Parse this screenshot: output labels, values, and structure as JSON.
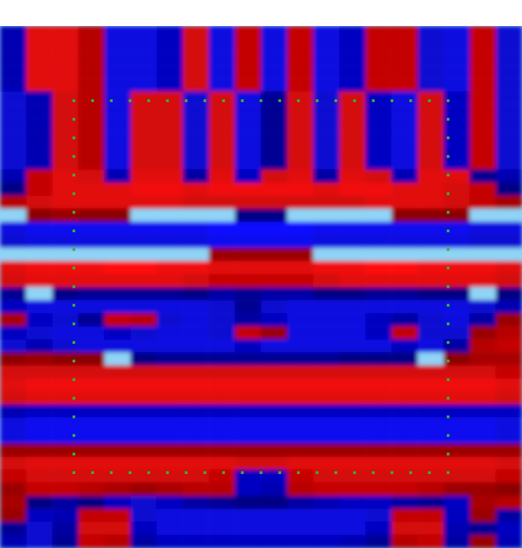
{
  "chart_data": {
    "type": "heatmap",
    "cells": [
      [
        -0.5,
        0.8,
        0.8,
        0.5,
        -0.8,
        -0.8,
        -0.6,
        0.7,
        -0.8,
        0.6,
        -0.8,
        0.6,
        -0.8,
        -0.6,
        0.6,
        0.6,
        -0.7,
        -0.8,
        0.6,
        -0.7
      ],
      [
        -0.5,
        0.8,
        0.8,
        0.5,
        -0.8,
        -0.8,
        -0.6,
        0.7,
        -0.8,
        0.6,
        -0.8,
        0.6,
        -0.8,
        -0.6,
        0.6,
        0.6,
        -0.7,
        -0.8,
        0.6,
        -0.7
      ],
      [
        -0.5,
        0.8,
        0.8,
        0.5,
        -0.8,
        -0.8,
        -0.6,
        0.7,
        -0.8,
        0.6,
        -0.8,
        0.6,
        -0.8,
        -0.6,
        0.6,
        0.6,
        -0.7,
        -0.8,
        0.6,
        -0.7
      ],
      [
        -0.5,
        0.8,
        0.8,
        0.5,
        -0.8,
        -0.8,
        -0.6,
        0.7,
        -0.8,
        0.6,
        -0.8,
        0.6,
        -0.8,
        -0.6,
        0.6,
        0.6,
        -0.7,
        -0.8,
        0.6,
        -0.7
      ],
      [
        -0.5,
        0.8,
        0.8,
        0.5,
        -0.8,
        -0.8,
        -0.6,
        0.7,
        -0.8,
        0.6,
        -0.8,
        0.6,
        -0.8,
        -0.6,
        0.6,
        0.6,
        -0.7,
        -0.8,
        0.6,
        -0.7
      ],
      [
        -0.7,
        -0.5,
        0.7,
        0.5,
        -0.8,
        0.7,
        0.7,
        -0.7,
        0.7,
        -0.8,
        -0.3,
        0.7,
        -0.7,
        0.7,
        -0.6,
        -0.8,
        0.7,
        -0.6,
        0.6,
        -0.7
      ],
      [
        -0.7,
        -0.5,
        0.7,
        0.5,
        -0.8,
        0.7,
        0.7,
        -0.7,
        0.7,
        -0.8,
        -0.3,
        0.7,
        -0.7,
        0.7,
        -0.6,
        -0.8,
        0.7,
        -0.6,
        0.6,
        -0.7
      ],
      [
        -0.7,
        -0.5,
        0.7,
        0.5,
        -0.8,
        0.7,
        0.7,
        -0.7,
        0.7,
        -0.8,
        -0.3,
        0.7,
        -0.7,
        0.7,
        -0.6,
        -0.8,
        0.7,
        -0.6,
        0.6,
        -0.7
      ],
      [
        -0.7,
        -0.5,
        0.7,
        0.5,
        -0.8,
        0.7,
        0.7,
        -0.7,
        0.7,
        -0.8,
        -0.3,
        0.7,
        -0.7,
        0.7,
        -0.6,
        -0.8,
        0.7,
        -0.6,
        0.6,
        -0.7
      ],
      [
        -0.7,
        -0.5,
        0.7,
        0.5,
        -0.8,
        0.7,
        0.7,
        -0.7,
        0.7,
        -0.8,
        -0.3,
        0.7,
        -0.7,
        0.7,
        -0.6,
        -0.8,
        0.7,
        -0.6,
        0.6,
        -0.7
      ],
      [
        -0.7,
        -0.5,
        0.7,
        0.5,
        -0.8,
        0.7,
        0.7,
        -0.7,
        0.7,
        -0.8,
        -0.3,
        0.7,
        -0.7,
        0.7,
        -0.6,
        -0.8,
        0.7,
        -0.6,
        0.6,
        -0.7
      ],
      [
        -0.5,
        0.6,
        0.8,
        0.7,
        -0.5,
        0.8,
        0.8,
        -0.4,
        0.8,
        -0.6,
        0.7,
        0.8,
        -0.4,
        0.8,
        0.7,
        -0.5,
        0.8,
        0.8,
        -0.3,
        -0.5
      ],
      [
        -0.2,
        0.6,
        0.8,
        0.8,
        0.8,
        0.9,
        0.9,
        0.8,
        0.9,
        0.9,
        0.9,
        0.9,
        0.8,
        0.9,
        0.9,
        0.8,
        0.8,
        0.7,
        0.6,
        -0.2
      ],
      [
        0.5,
        0.7,
        0.8,
        0.8,
        0.8,
        0.8,
        0.8,
        0.7,
        0.7,
        0.7,
        0.7,
        0.7,
        0.7,
        0.7,
        0.8,
        0.8,
        0.8,
        0.7,
        0.6,
        0.4
      ],
      [
        0.1,
        0.2,
        0.3,
        0.2,
        0.2,
        0.1,
        0.1,
        0,
        -0.1,
        -0.2,
        -0.2,
        -0.1,
        0,
        0.1,
        0.1,
        0.2,
        0.2,
        0.2,
        0.1,
        0
      ],
      [
        -0.8,
        -0.9,
        -0.9,
        -0.9,
        -0.9,
        -0.9,
        -0.9,
        -0.9,
        -1,
        -1,
        -1,
        -1,
        -0.9,
        -0.9,
        -0.9,
        -0.9,
        -0.9,
        -0.9,
        -0.8,
        -0.8
      ],
      [
        -0.7,
        -0.8,
        -0.8,
        -0.8,
        -0.8,
        -0.8,
        -0.8,
        -0.8,
        -0.9,
        -0.9,
        -0.9,
        -0.9,
        -0.8,
        -0.8,
        -0.8,
        -0.8,
        -0.8,
        -0.8,
        -0.7,
        -0.7
      ],
      [
        0,
        0,
        -0.1,
        -0.1,
        -0.1,
        -0.1,
        -0.1,
        0,
        0.3,
        0.3,
        0.3,
        0.3,
        0,
        -0.1,
        -0.1,
        -0.1,
        -0.1,
        -0.1,
        0,
        0
      ],
      [
        0.8,
        0.9,
        0.9,
        0.9,
        1,
        1,
        0.9,
        0.9,
        0.8,
        0.8,
        0.8,
        0.8,
        0.9,
        0.9,
        1,
        1,
        0.9,
        0.9,
        0.9,
        0.8
      ],
      [
        0.7,
        0.8,
        0.8,
        0.8,
        0.8,
        0.8,
        0.8,
        0.7,
        0.6,
        0.6,
        0.6,
        0.6,
        0.7,
        0.8,
        0.8,
        0.8,
        0.8,
        0.8,
        0.8,
        0.7
      ],
      [
        -0.3,
        -0.1,
        -0.2,
        -0.3,
        -0.3,
        -0.3,
        -0.3,
        -0.2,
        -0.4,
        -0.3,
        -0.4,
        -0.4,
        -0.2,
        -0.2,
        -0.3,
        -0.3,
        -0.2,
        -0.2,
        -0.1,
        -0.2
      ],
      [
        -0.6,
        -0.8,
        -0.8,
        -0.8,
        -0.8,
        -0.8,
        -0.8,
        -0.8,
        -0.7,
        -0.3,
        -0.7,
        -0.8,
        -0.8,
        -0.8,
        -0.8,
        -0.8,
        -0.8,
        -0.8,
        -0.7,
        -0.5
      ],
      [
        0.4,
        -0.6,
        -0.7,
        -0.3,
        0.6,
        0.5,
        -0.7,
        -0.8,
        -0.7,
        -0.4,
        -0.6,
        -0.8,
        -0.8,
        -0.8,
        -0.6,
        -0.4,
        -0.7,
        -0.8,
        -0.4,
        0.3
      ],
      [
        -0.6,
        -0.7,
        -0.8,
        -0.8,
        -0.6,
        -0.7,
        -0.8,
        -0.8,
        -0.7,
        0.6,
        0.3,
        -0.8,
        -0.8,
        -0.8,
        -0.6,
        0.6,
        -0.7,
        -0.7,
        0.3,
        0.5
      ],
      [
        -0.7,
        -0.5,
        -0.7,
        -0.8,
        -0.8,
        -0.8,
        -0.8,
        -0.8,
        -0.8,
        -0.6,
        -0.8,
        -0.8,
        -0.8,
        -0.8,
        -0.8,
        -0.6,
        -0.8,
        -0.4,
        0.5,
        0.6
      ],
      [
        0.2,
        0.3,
        0.2,
        0.2,
        0,
        -0.2,
        -0.3,
        -0.3,
        -0.3,
        -0.3,
        -0.3,
        -0.3,
        -0.3,
        -0.2,
        -0.2,
        -0.2,
        -0.1,
        0.2,
        0.4,
        0.4
      ],
      [
        0.7,
        0.7,
        0.7,
        0.7,
        0.7,
        0.7,
        0.7,
        0.7,
        0.7,
        0.7,
        0.7,
        0.7,
        0.7,
        0.7,
        0.7,
        0.7,
        0.7,
        0.7,
        0.7,
        0.6
      ],
      [
        0.8,
        0.9,
        0.9,
        0.9,
        0.9,
        0.9,
        0.9,
        0.9,
        0.9,
        0.9,
        0.9,
        0.9,
        0.9,
        0.9,
        0.9,
        0.9,
        0.9,
        0.9,
        0.9,
        0.8
      ],
      [
        0.7,
        0.8,
        0.8,
        0.8,
        0.8,
        0.8,
        0.8,
        0.8,
        0.8,
        0.8,
        0.8,
        0.8,
        0.8,
        0.8,
        0.8,
        0.8,
        0.8,
        0.8,
        0.8,
        0.7
      ],
      [
        -0.5,
        -0.6,
        -0.6,
        -0.6,
        -0.6,
        -0.6,
        -0.6,
        -0.6,
        -0.6,
        -0.6,
        -0.6,
        -0.6,
        -0.6,
        -0.6,
        -0.6,
        -0.6,
        -0.6,
        -0.6,
        -0.6,
        -0.6
      ],
      [
        -0.8,
        -0.9,
        -0.9,
        -0.9,
        -0.9,
        -0.9,
        -0.9,
        -0.9,
        -0.9,
        -0.9,
        -0.9,
        -0.9,
        -0.9,
        -0.9,
        -0.9,
        -0.9,
        -0.9,
        -0.9,
        -0.9,
        -0.8
      ],
      [
        -0.8,
        -0.9,
        -0.9,
        -0.9,
        -0.9,
        -0.9,
        -0.9,
        -0.9,
        -0.9,
        -0.9,
        -0.9,
        -0.9,
        -0.9,
        -0.9,
        -0.9,
        -0.9,
        -0.9,
        -0.9,
        -0.9,
        -0.8
      ],
      [
        0.3,
        0.3,
        0.3,
        0.3,
        0.3,
        0.3,
        0.3,
        0.3,
        0.3,
        0.3,
        0.3,
        0.3,
        0.3,
        0.3,
        0.3,
        0.3,
        0.3,
        0.3,
        0.3,
        0.3
      ],
      [
        0.7,
        0.8,
        0.8,
        0.8,
        0.8,
        0.8,
        0.8,
        0.8,
        0.8,
        0.7,
        0.7,
        0.8,
        0.8,
        0.8,
        0.8,
        0.8,
        0.8,
        0.8,
        0.8,
        0.7
      ],
      [
        0.6,
        0.7,
        0.7,
        0.7,
        0.7,
        0.7,
        0.7,
        0.7,
        0.6,
        -0.6,
        -0.6,
        0.6,
        0.7,
        0.7,
        0.7,
        0.7,
        0.7,
        0.7,
        0.7,
        0.6
      ],
      [
        0.3,
        0.6,
        0.6,
        0.5,
        0.4,
        0.3,
        0.4,
        0.5,
        0.5,
        -0.6,
        -0.5,
        0.5,
        0.6,
        0.6,
        0.6,
        0.6,
        0.5,
        0.3,
        0.3,
        0.2
      ],
      [
        0.4,
        -0.2,
        -0.4,
        -0.2,
        -0.6,
        -0.7,
        -0.6,
        -0.4,
        -0.3,
        -0.2,
        -0.2,
        -0.4,
        -0.5,
        -0.6,
        -0.6,
        -0.4,
        -0.3,
        -0.6,
        0.4,
        0.5
      ],
      [
        0.3,
        -0.6,
        -0.5,
        0.6,
        0.6,
        -0.7,
        -0.8,
        -0.8,
        -0.8,
        -0.8,
        -0.8,
        -0.8,
        -0.8,
        -0.8,
        -0.7,
        0.6,
        0.6,
        -0.6,
        0.3,
        -0.4
      ],
      [
        -0.3,
        -0.7,
        -0.4,
        0.7,
        0.7,
        -0.6,
        -0.8,
        -0.8,
        -0.8,
        -0.8,
        -0.8,
        -0.8,
        -0.8,
        -0.8,
        -0.6,
        0.7,
        0.7,
        -0.5,
        -0.3,
        -0.6
      ],
      [
        -0.5,
        -0.7,
        -0.3,
        0.6,
        0.5,
        -0.4,
        -0.6,
        -0.6,
        -0.6,
        -0.6,
        -0.6,
        -0.6,
        -0.6,
        -0.5,
        -0.3,
        0.5,
        0.6,
        -0.4,
        0.3,
        -0.5
      ]
    ]
  }
}
